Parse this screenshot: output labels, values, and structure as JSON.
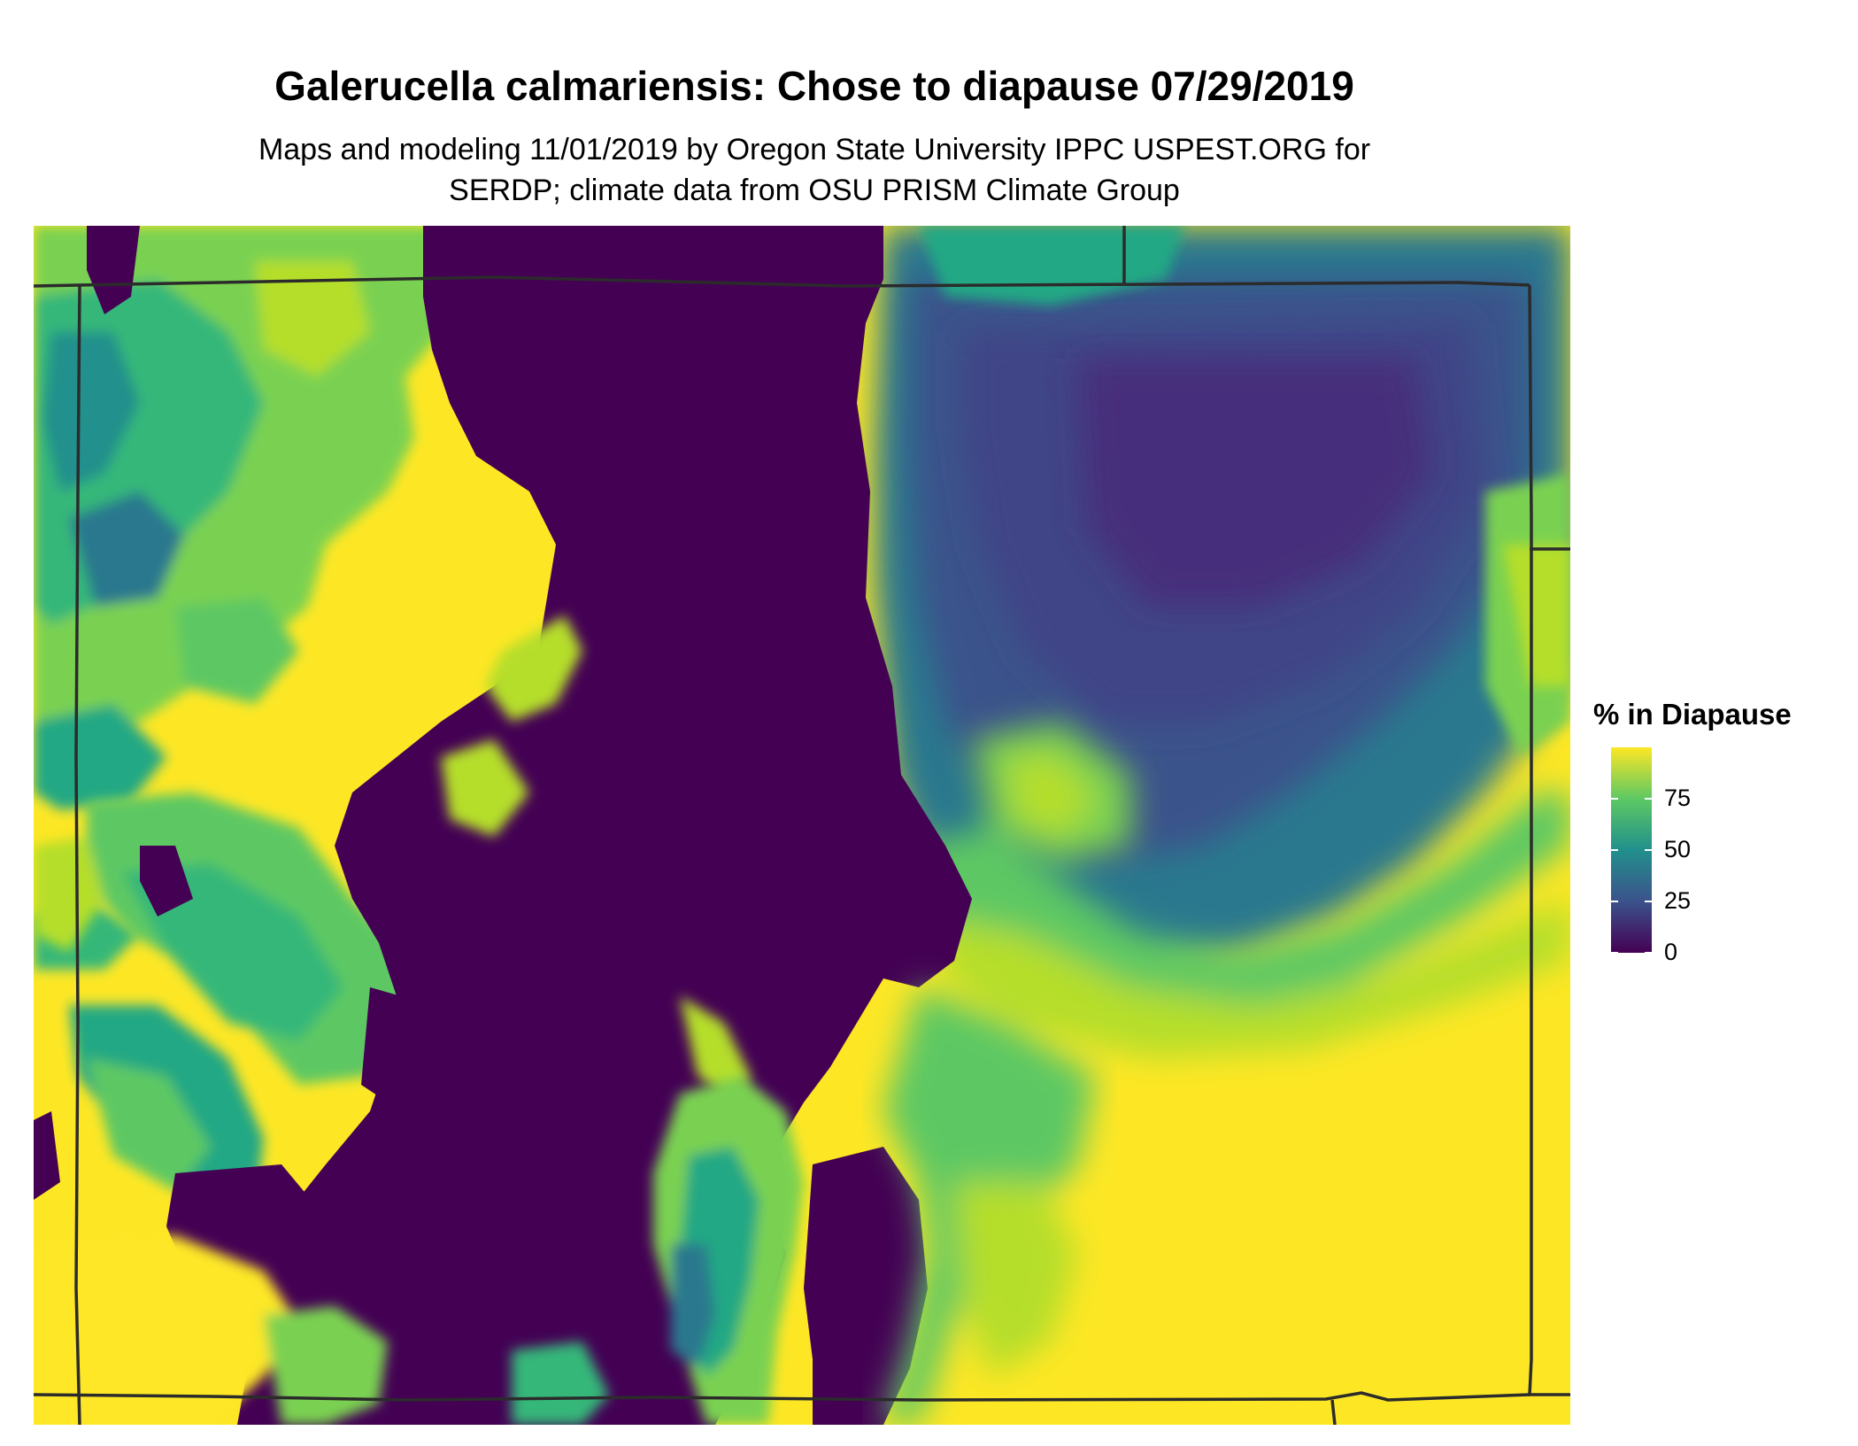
{
  "title": "Galerucella calmariensis: Chose to diapause 07/29/2019",
  "subtitle_line1": "Maps and modeling 11/01/2019 by Oregon State University IPPC USPEST.ORG for",
  "subtitle_line2": "SERDP; climate data from OSU PRISM Climate Group",
  "legend": {
    "title": "% in Diapause",
    "ticks": [
      "0",
      "25",
      "50",
      "75"
    ],
    "tick_values": [
      0,
      25,
      50,
      75
    ],
    "range": [
      0,
      100
    ],
    "palette": "viridis",
    "colors": {
      "low": "#440154",
      "q25": "#3b528b",
      "mid": "#21908c",
      "q75": "#5dc863",
      "high": "#fde725"
    }
  },
  "chart_data": {
    "type": "heatmap",
    "title": "Galerucella calmariensis: Chose to diapause 07/29/2019",
    "colorbar_label": "% in Diapause",
    "value_range": [
      0,
      100
    ],
    "legend_ticks": [
      0,
      25,
      50,
      75
    ],
    "legend_position": "right",
    "grid": false
  }
}
